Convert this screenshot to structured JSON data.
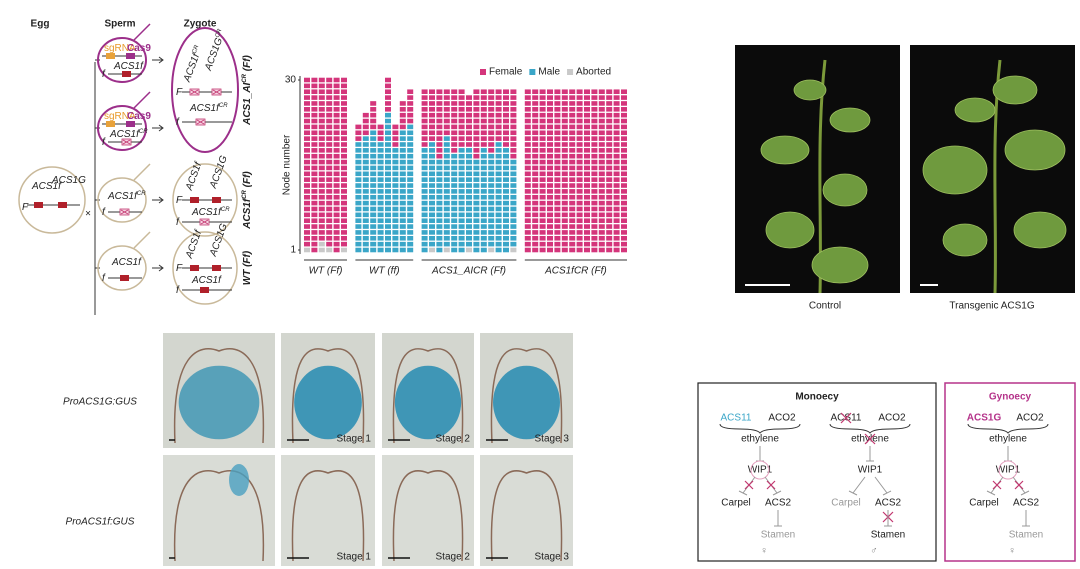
{
  "diagram": {
    "headers": [
      "Egg",
      "Sperm",
      "Zygote"
    ],
    "cross": "×",
    "egg": [
      "ACS1f",
      "ACS1G",
      "F"
    ],
    "sperm_sgrna": [
      "sgRNA",
      "Cas9",
      "ACS1f",
      "f"
    ],
    "sperm_sgrna_cr": [
      "sgRNA",
      "Cas9",
      "ACS1f",
      "CR",
      "f"
    ],
    "sperm_cr": [
      "ACS1f",
      "CR",
      "f"
    ],
    "sperm_wt": [
      "ACS1f",
      "f"
    ],
    "zygote_ai": [
      "ACS1f",
      "CR",
      "ACS1G",
      "CR",
      "F",
      "ACS1f",
      "CR",
      "f"
    ],
    "zygote_cr": [
      "ACS1f",
      "ACS1G",
      "F",
      "ACS1f",
      "CR",
      "f"
    ],
    "zygote_wt": [
      "ACS1f",
      "ACS1G",
      "F",
      "ACS1f",
      "f"
    ],
    "genotypes": [
      [
        "ACS1_AI",
        "CR",
        " (Ff)"
      ],
      [
        "ACS1f",
        "CR",
        " (Ff)"
      ],
      [
        "WT (Ff)"
      ]
    ]
  },
  "chart_data": {
    "type": "cell-stack",
    "ylabel": "Node number",
    "ylim": [
      1,
      30
    ],
    "yticks": [
      1,
      30
    ],
    "series": [
      {
        "name": "Female",
        "color": "#d4357b"
      },
      {
        "name": "Male",
        "color": "#3aa6c8"
      },
      {
        "name": "Aborted",
        "color": "#c9c9c9"
      }
    ],
    "groups": [
      {
        "label": "WT (Ff)",
        "plants": [
          [
            29,
            0,
            1
          ],
          [
            30,
            0,
            0
          ],
          [
            28,
            0,
            2
          ],
          [
            29,
            0,
            1
          ],
          [
            30,
            0,
            0
          ],
          [
            29,
            0,
            1
          ]
        ]
      },
      {
        "label": "WT (ff)",
        "plants": [
          [
            3,
            19,
            0
          ],
          [
            4,
            20,
            0
          ],
          [
            5,
            21,
            0
          ],
          [
            3,
            19,
            0
          ],
          [
            6,
            24,
            0
          ],
          [
            4,
            18,
            0
          ],
          [
            5,
            21,
            0
          ],
          [
            6,
            22,
            0
          ]
        ]
      },
      {
        "label": "ACS1_AICR (Ff)",
        "plants": [
          [
            10,
            18,
            0
          ],
          [
            9,
            18,
            1
          ],
          [
            12,
            16,
            0
          ],
          [
            8,
            19,
            1
          ],
          [
            11,
            17,
            0
          ],
          [
            10,
            18,
            0
          ],
          [
            9,
            17,
            1
          ],
          [
            12,
            16,
            0
          ],
          [
            10,
            18,
            0
          ],
          [
            11,
            16,
            1
          ],
          [
            9,
            19,
            0
          ],
          [
            10,
            18,
            0
          ],
          [
            12,
            15,
            1
          ]
        ]
      },
      {
        "label": "ACS1fCR (Ff)",
        "plants": [
          [
            28,
            0,
            0
          ],
          [
            28,
            0,
            0
          ],
          [
            28,
            0,
            0
          ],
          [
            28,
            0,
            0
          ],
          [
            28,
            0,
            0
          ],
          [
            28,
            0,
            0
          ],
          [
            28,
            0,
            0
          ],
          [
            28,
            0,
            0
          ],
          [
            28,
            0,
            0
          ],
          [
            28,
            0,
            0
          ],
          [
            28,
            0,
            0
          ],
          [
            28,
            0,
            0
          ],
          [
            28,
            0,
            0
          ],
          [
            28,
            0,
            0
          ]
        ]
      }
    ]
  },
  "photos": [
    "Control",
    "Transgenic ACS1G"
  ],
  "micro": {
    "rows": [
      "ProACS1G:GUS",
      "ProACS1f:GUS"
    ],
    "stages": [
      "Stage 1",
      "Stage 2",
      "Stage 3"
    ]
  },
  "network": {
    "monoecy": {
      "title": "Monoecy",
      "wt": {
        "inputs": [
          "ACS11",
          "ACO2"
        ],
        "hormone": "ethylene",
        "regulator": "WIP1",
        "outputs": [
          "Carpel",
          "ACS2"
        ],
        "target": "Stamen",
        "sex": "♀"
      },
      "mutant": {
        "inputs": [
          "ACS11",
          "ACO2"
        ],
        "hormone": "ethylene",
        "regulator": "WIP1",
        "outputs": [
          "Carpel",
          "ACS2"
        ],
        "target": "Stamen",
        "sex": "♂"
      }
    },
    "gynoecy": {
      "title": "Gynoecy",
      "net": {
        "inputs": [
          "ACS1G",
          "ACO2"
        ],
        "hormone": "ethylene",
        "regulator": "WIP1",
        "outputs": [
          "Carpel",
          "ACS2"
        ],
        "target": "Stamen",
        "sex": "♀"
      }
    }
  }
}
